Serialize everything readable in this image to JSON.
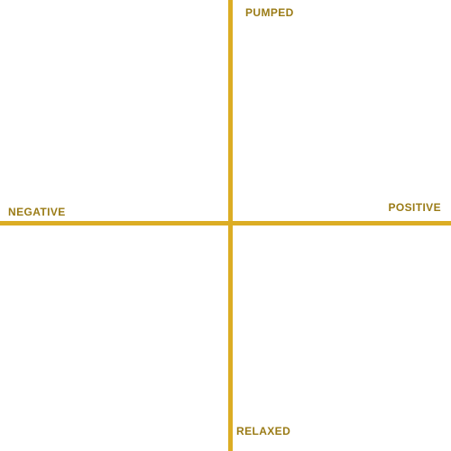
{
  "colors": {
    "axis": "#dcad24",
    "label": "#9a7b16",
    "background": "#ffffff"
  },
  "labels": {
    "top": "PUMPED",
    "bottom": "RELAXED",
    "left": "NEGATIVE",
    "right": "POSITIVE"
  }
}
